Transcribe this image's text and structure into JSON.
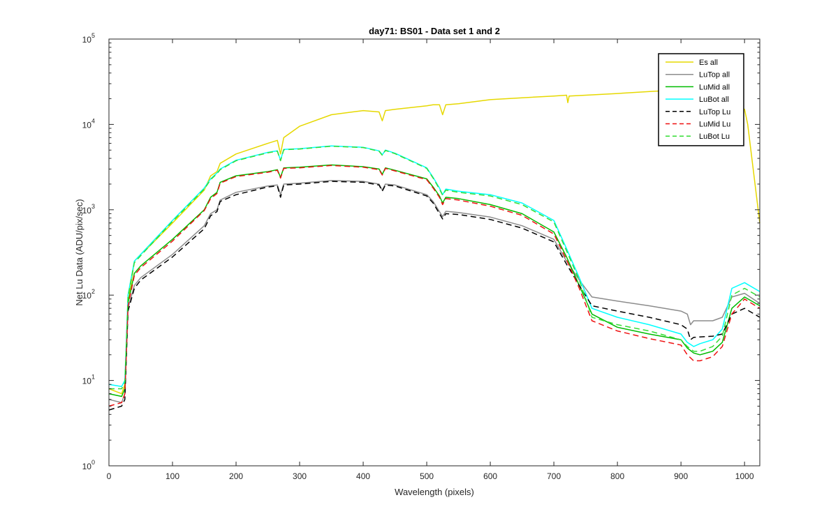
{
  "chart_data": {
    "type": "line",
    "title": "day71: BS01 - Data set 1 and 2",
    "xlabel": "Wavelength (pixels)",
    "ylabel": "Net Lu Data (ADU/pix/sec)",
    "xlim": [
      0,
      1024
    ],
    "ylim": [
      1,
      100000
    ],
    "yscale": "log",
    "xticks": [
      0,
      100,
      200,
      300,
      400,
      500,
      600,
      700,
      800,
      900,
      1000
    ],
    "yticks": [
      {
        "value": 1,
        "base": "10",
        "exp": "0"
      },
      {
        "value": 10,
        "base": "10",
        "exp": "1"
      },
      {
        "value": 100,
        "base": "10",
        "exp": "2"
      },
      {
        "value": 1000,
        "base": "10",
        "exp": "3"
      },
      {
        "value": 10000,
        "base": "10",
        "exp": "4"
      },
      {
        "value": 100000,
        "base": "10",
        "exp": "5"
      }
    ],
    "grid": false,
    "legend_position": "top-right",
    "series": [
      {
        "name": "Es  all",
        "color": "#e6d800",
        "dash": "solid",
        "x": [
          0,
          20,
          25,
          30,
          40,
          50,
          60,
          100,
          150,
          160,
          170,
          175,
          200,
          250,
          265,
          270,
          275,
          300,
          350,
          400,
          425,
          430,
          435,
          450,
          500,
          510,
          520,
          525,
          530,
          550,
          600,
          650,
          700,
          720,
          722,
          724,
          800,
          860,
          900,
          950,
          1000,
          1005,
          1024
        ],
        "y": [
          8,
          7,
          9,
          80,
          250,
          300,
          350,
          700,
          1700,
          2500,
          2800,
          3500,
          4500,
          6000,
          6500,
          4500,
          7000,
          9500,
          13000,
          14500,
          14000,
          11000,
          14500,
          15000,
          16500,
          17000,
          17000,
          13000,
          17000,
          17500,
          19500,
          20500,
          21500,
          22000,
          18000,
          21500,
          23000,
          24500,
          25000,
          25500,
          15000,
          10000,
          700
        ]
      },
      {
        "name": "LuTop  all",
        "color": "#8c8c8c",
        "dash": "solid",
        "x": [
          0,
          20,
          25,
          30,
          40,
          50,
          100,
          150,
          160,
          170,
          175,
          200,
          250,
          265,
          270,
          275,
          300,
          350,
          400,
          425,
          430,
          435,
          450,
          500,
          510,
          520,
          525,
          530,
          550,
          600,
          650,
          700,
          720,
          740,
          760,
          800,
          850,
          900,
          910,
          915,
          920,
          950,
          965,
          980,
          1000,
          1024
        ],
        "y": [
          6,
          5.5,
          7,
          70,
          130,
          160,
          300,
          650,
          900,
          1000,
          1300,
          1600,
          1900,
          1950,
          1500,
          2000,
          2050,
          2200,
          2150,
          2000,
          1700,
          2000,
          1950,
          1500,
          1250,
          950,
          830,
          960,
          930,
          820,
          650,
          450,
          250,
          150,
          95,
          85,
          75,
          65,
          60,
          45,
          50,
          50,
          55,
          95,
          105,
          80
        ]
      },
      {
        "name": "LuMid  all",
        "color": "#00bb00",
        "dash": "solid",
        "x": [
          0,
          20,
          25,
          30,
          40,
          50,
          100,
          150,
          160,
          170,
          175,
          200,
          250,
          265,
          270,
          275,
          300,
          350,
          400,
          425,
          430,
          435,
          450,
          500,
          510,
          520,
          525,
          530,
          550,
          600,
          650,
          700,
          720,
          740,
          760,
          800,
          850,
          900,
          910,
          920,
          930,
          950,
          965,
          980,
          1000,
          1024
        ],
        "y": [
          7,
          6.5,
          8,
          80,
          180,
          220,
          450,
          1000,
          1400,
          1600,
          2100,
          2500,
          2800,
          2950,
          2400,
          3100,
          3150,
          3350,
          3200,
          3000,
          2600,
          3100,
          2900,
          2300,
          1850,
          1450,
          1200,
          1400,
          1350,
          1150,
          900,
          550,
          280,
          130,
          60,
          42,
          35,
          30,
          24,
          21,
          20,
          22,
          28,
          70,
          95,
          75
        ]
      },
      {
        "name": "LuBot  all",
        "color": "#00ffff",
        "dash": "solid",
        "x": [
          0,
          20,
          25,
          30,
          40,
          50,
          100,
          150,
          160,
          170,
          175,
          200,
          250,
          265,
          270,
          275,
          300,
          350,
          400,
          425,
          430,
          435,
          450,
          500,
          510,
          520,
          525,
          530,
          550,
          600,
          650,
          700,
          720,
          740,
          760,
          800,
          850,
          900,
          910,
          920,
          930,
          950,
          965,
          980,
          1000,
          1024
        ],
        "y": [
          9,
          8.5,
          10,
          100,
          250,
          300,
          750,
          1800,
          2300,
          2700,
          3000,
          3800,
          4700,
          4900,
          3800,
          5100,
          5200,
          5600,
          5400,
          4900,
          4400,
          5000,
          4600,
          3100,
          2400,
          1800,
          1500,
          1750,
          1650,
          1500,
          1200,
          750,
          350,
          160,
          70,
          55,
          45,
          35,
          28,
          25,
          27,
          30,
          40,
          120,
          140,
          110
        ]
      },
      {
        "name": "LuTop  Lu",
        "color": "#000000",
        "dash": "8,5",
        "x": [
          0,
          20,
          25,
          30,
          40,
          50,
          100,
          150,
          160,
          170,
          175,
          200,
          250,
          265,
          270,
          275,
          300,
          350,
          400,
          425,
          430,
          435,
          450,
          500,
          510,
          520,
          525,
          530,
          550,
          600,
          650,
          700,
          720,
          740,
          760,
          800,
          850,
          900,
          910,
          915,
          920,
          950,
          965,
          980,
          1000,
          1024
        ],
        "y": [
          4.5,
          5,
          6,
          65,
          120,
          150,
          280,
          600,
          850,
          950,
          1250,
          1500,
          1850,
          1900,
          1400,
          1950,
          2000,
          2150,
          2100,
          1950,
          1650,
          1950,
          1900,
          1450,
          1200,
          900,
          780,
          900,
          880,
          770,
          610,
          420,
          230,
          130,
          75,
          65,
          55,
          45,
          40,
          30,
          32,
          33,
          35,
          60,
          70,
          55
        ]
      },
      {
        "name": "LuMid  Lu",
        "color": "#ee1111",
        "dash": "8,5",
        "x": [
          0,
          20,
          25,
          30,
          40,
          50,
          100,
          150,
          160,
          170,
          175,
          200,
          250,
          265,
          270,
          275,
          300,
          350,
          400,
          425,
          430,
          435,
          450,
          500,
          510,
          520,
          525,
          530,
          550,
          600,
          650,
          700,
          720,
          740,
          760,
          800,
          850,
          900,
          910,
          920,
          930,
          950,
          965,
          980,
          1000,
          1024
        ],
        "y": [
          5,
          5.5,
          7,
          75,
          170,
          210,
          430,
          980,
          1350,
          1550,
          2050,
          2450,
          2750,
          2900,
          2350,
          3050,
          3100,
          3300,
          3150,
          2950,
          2550,
          3050,
          2850,
          2250,
          1800,
          1400,
          1150,
          1350,
          1300,
          1100,
          860,
          520,
          260,
          120,
          50,
          38,
          31,
          26,
          20,
          17,
          17,
          19,
          25,
          60,
          90,
          70
        ]
      },
      {
        "name": "LuBot  Lu",
        "color": "#33dd33",
        "dash": "8,5",
        "x": [
          0,
          20,
          25,
          30,
          40,
          50,
          100,
          150,
          160,
          170,
          175,
          200,
          250,
          265,
          270,
          275,
          300,
          350,
          400,
          425,
          430,
          435,
          450,
          500,
          510,
          520,
          525,
          530,
          550,
          600,
          650,
          700,
          720,
          740,
          760,
          800,
          850,
          900,
          910,
          920,
          930,
          950,
          965,
          980,
          1000,
          1024
        ],
        "y": [
          8,
          8,
          9.5,
          95,
          240,
          290,
          730,
          1750,
          2250,
          2650,
          2950,
          3750,
          4650,
          4850,
          3750,
          5050,
          5150,
          5550,
          5350,
          4850,
          4350,
          4950,
          4550,
          3050,
          2350,
          1750,
          1480,
          1700,
          1600,
          1450,
          1150,
          720,
          330,
          150,
          55,
          45,
          38,
          30,
          25,
          22,
          22,
          25,
          33,
          100,
          120,
          95
        ]
      }
    ]
  }
}
